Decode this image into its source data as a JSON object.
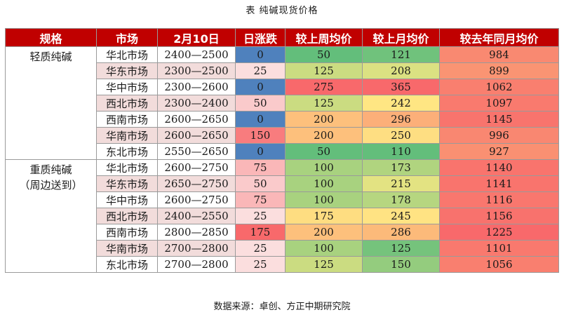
{
  "title": "表    纯碱现货价格",
  "headers": [
    "规格",
    "市场",
    "2月10日",
    "日涨跌",
    "较上周均价",
    "较上月均价",
    "较去年同月均价"
  ],
  "groups": [
    {
      "spec_lines": [
        "轻质纯碱"
      ],
      "rows": [
        {
          "market": "华北市场",
          "price": "2400—2500",
          "change": "0",
          "week": "50",
          "month": "121",
          "year": "984"
        },
        {
          "market": "华东市场",
          "price": "2300—2500",
          "change": "25",
          "week": "125",
          "month": "208",
          "year": "899"
        },
        {
          "market": "华中市场",
          "price": "2300—2600",
          "change": "0",
          "week": "275",
          "month": "365",
          "year": "1062"
        },
        {
          "market": "西北市场",
          "price": "2300—2400",
          "change": "50",
          "week": "125",
          "month": "242",
          "year": "1097"
        },
        {
          "market": "西南市场",
          "price": "2600—2650",
          "change": "0",
          "week": "200",
          "month": "296",
          "year": "1145"
        },
        {
          "market": "华南市场",
          "price": "2600—2650",
          "change": "150",
          "week": "200",
          "month": "250",
          "year": "996"
        },
        {
          "market": "东北市场",
          "price": "2550—2650",
          "change": "0",
          "week": "50",
          "month": "110",
          "year": "927"
        }
      ]
    },
    {
      "spec_lines": [
        "重质纯碱",
        "（周边送到）"
      ],
      "rows": [
        {
          "market": "华北市场",
          "price": "2600—2750",
          "change": "75",
          "week": "100",
          "month": "173",
          "year": "1140"
        },
        {
          "market": "华东市场",
          "price": "2650—2750",
          "change": "50",
          "week": "100",
          "month": "215",
          "year": "1141"
        },
        {
          "market": "华中市场",
          "price": "2600—2750",
          "change": "75",
          "week": "100",
          "month": "178",
          "year": "1116"
        },
        {
          "market": "西北市场",
          "price": "2400—2550",
          "change": "25",
          "week": "175",
          "month": "245",
          "year": "1156"
        },
        {
          "market": "西南市场",
          "price": "2800—2850",
          "change": "175",
          "week": "200",
          "month": "286",
          "year": "1225"
        },
        {
          "market": "华南市场",
          "price": "2700—2800",
          "change": "25",
          "week": "100",
          "month": "125",
          "year": "1101"
        },
        {
          "market": "东北市场",
          "price": "2700—2800",
          "change": "25",
          "week": "125",
          "month": "150",
          "year": "1056"
        }
      ]
    }
  ],
  "source": "数据来源：卓创、方正中期研究院",
  "colors": {
    "header_bg": "#c00000",
    "header_text": "#ffffff",
    "market_pink": "#f2dcdb",
    "change_zero": "#4f81bd",
    "change_min": "#fbf1f1",
    "change_max": "#f8696b",
    "scale_low": "#63be7b",
    "scale_mid": "#ffeb84",
    "scale_high": "#f8696b"
  }
}
